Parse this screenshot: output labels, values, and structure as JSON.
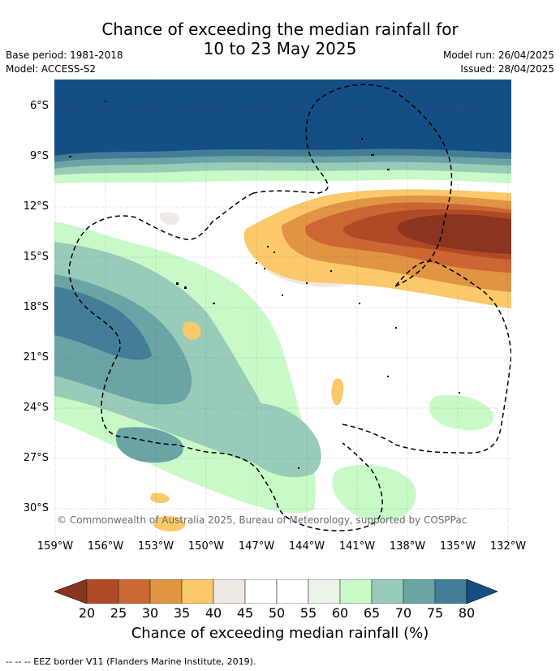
{
  "title": {
    "line1": "Chance of exceeding the median rainfall for",
    "line2": "10 to 23 May 2025"
  },
  "meta": {
    "base_period": "Base period: 1981-2018",
    "model": "Model: ACCESS-S2",
    "model_run": "Model run: 26/04/2025",
    "issued": "Issued: 28/04/2025"
  },
  "map": {
    "lat_labels": [
      "6°S",
      "9°S",
      "12°S",
      "15°S",
      "18°S",
      "21°S",
      "24°S",
      "27°S",
      "30°S"
    ],
    "lon_labels": [
      "159°W",
      "156°W",
      "153°W",
      "150°W",
      "147°W",
      "144°W",
      "141°W",
      "138°W",
      "135°W",
      "132°W"
    ],
    "copyright": "© Commonwealth of Australia 2025, Bureau of Meteorology, supported by COSPPac"
  },
  "colorbar": {
    "ticks": [
      "20",
      "25",
      "30",
      "35",
      "40",
      "45",
      "50",
      "55",
      "60",
      "65",
      "70",
      "75",
      "80"
    ],
    "colors": [
      "#8b3420",
      "#b04a26",
      "#cc6634",
      "#e09444",
      "#fbc86a",
      "#efe9e4",
      "#ffffff",
      "#ffffff",
      "#eaf5e8",
      "#c8fac8",
      "#98ccb8",
      "#6aa4a4",
      "#427e98",
      "#154e84"
    ],
    "label": "Chance of exceeding median rainfall (%)"
  },
  "footnote": "--  --  -- EEZ border V11 (Flanders Marine Institute, 2019)."
}
